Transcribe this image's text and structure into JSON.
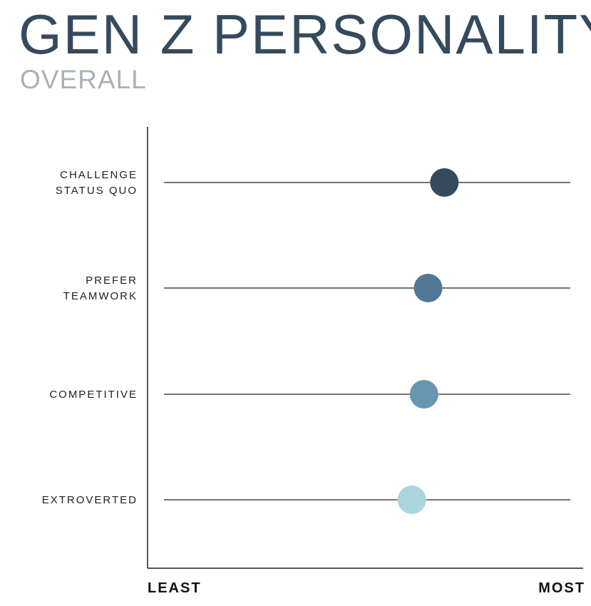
{
  "chart_data": {
    "type": "scatter",
    "title": "GEN Z PERSONALITY",
    "subtitle": "OVERALL",
    "scale_min_label": "LEAST",
    "scale_max_label": "MOST",
    "xlim": [
      0,
      100
    ],
    "categories": [
      {
        "lines": [
          "CHALLENGE",
          "STATUS QUO"
        ],
        "value": 69,
        "color": "#364a5d"
      },
      {
        "lines": [
          "PREFER",
          "TEAMWORK"
        ],
        "value": 65,
        "color": "#537895"
      },
      {
        "lines": [
          "COMPETITIVE"
        ],
        "value": 64,
        "color": "#6796b0"
      },
      {
        "lines": [
          "EXTROVERTED"
        ],
        "value": 61,
        "color": "#a9d5df"
      }
    ]
  }
}
